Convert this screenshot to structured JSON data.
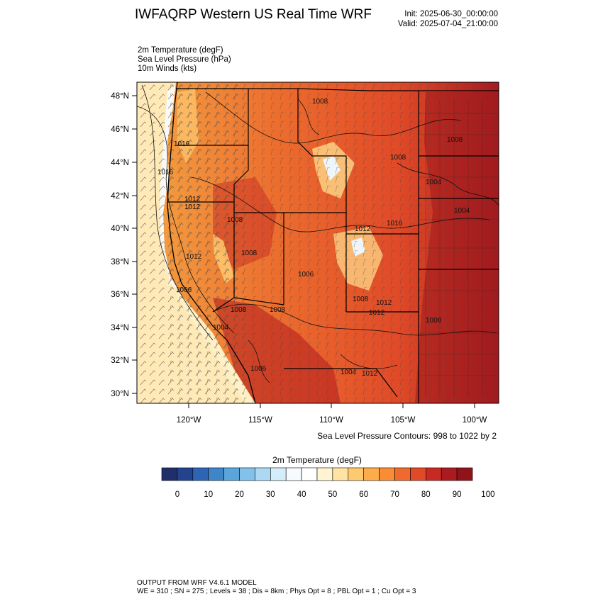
{
  "header": {
    "title": "IWFAQRP Western US Real Time WRF",
    "init": "Init: 2025-06-30_00:00:00",
    "valid": "Valid: 2025-07-04_21:00:00"
  },
  "fields": [
    "2m Temperature   (degF)",
    "Sea Level Pressure   (hPa)",
    "10m Winds   (kts)"
  ],
  "map": {
    "lat_labels": [
      "48°N",
      "46°N",
      "44°N",
      "42°N",
      "40°N",
      "38°N",
      "36°N",
      "34°N",
      "32°N",
      "30°N"
    ],
    "lon_labels": [
      "120°W",
      "115°W",
      "110°W",
      "105°W",
      "100°W"
    ],
    "pressure_labels": [
      "1008",
      "1016",
      "1016",
      "1012",
      "1008",
      "1008",
      "1012",
      "1004",
      "1004",
      "1008",
      "1006",
      "1008",
      "1012",
      "1016",
      "1012",
      "1004",
      "1006",
      "1008",
      "1012",
      "1008",
      "1012",
      "1012",
      "1008",
      "1008",
      "1006",
      "1004"
    ]
  },
  "contour_note": "Sea Level Pressure Contours: 998 to 1022 by 2",
  "colorbar": {
    "title": "2m Temperature  (degF)",
    "tick_labels": [
      "0",
      "10",
      "20",
      "30",
      "40",
      "50",
      "60",
      "70",
      "80",
      "90",
      "100"
    ],
    "colors": [
      "#1f2f6a",
      "#23438f",
      "#2e64b4",
      "#3f86c8",
      "#5aa5dc",
      "#84c1ea",
      "#acd8f4",
      "#d4edfa",
      "#f7fbfe",
      "#ffffff",
      "#fff4d2",
      "#ffe3a2",
      "#ffc970",
      "#fdac4b",
      "#fa8c35",
      "#ef6a2c",
      "#e04a28",
      "#c72a23",
      "#a91b1f",
      "#8f1419"
    ]
  },
  "footer": {
    "line1": "OUTPUT FROM WRF V4.6.1 MODEL",
    "line2": "WE = 310 ; SN = 275 ; Levels = 38 ; Dis = 8km ; Phys Opt = 8 ; PBL Opt = 1 ; Cu Opt = 3"
  }
}
